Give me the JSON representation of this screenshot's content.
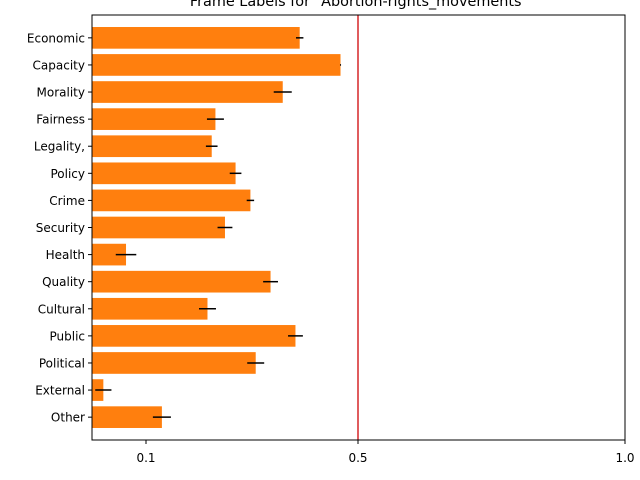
{
  "chart_data": {
    "type": "bar",
    "orientation": "horizontal",
    "title": "Frame Labels for \"Abortion-rights_movements\"",
    "xlabel": "",
    "ylabel": "",
    "categories": [
      "Economic",
      "Capacity",
      "Morality",
      "Fairness",
      "Legality,",
      "Policy",
      "Crime",
      "Security",
      "Health",
      "Quality",
      "Cultural",
      "Public",
      "Political",
      "External",
      "Other"
    ],
    "values": [
      0.39,
      0.467,
      0.358,
      0.231,
      0.224,
      0.269,
      0.297,
      0.249,
      0.063,
      0.335,
      0.216,
      0.382,
      0.307,
      0.021,
      0.13
    ],
    "errors": [
      0.007,
      0.001,
      0.017,
      0.016,
      0.011,
      0.011,
      0.007,
      0.014,
      0.019,
      0.014,
      0.016,
      0.014,
      0.016,
      0.015,
      0.017
    ],
    "xlim": [
      0,
      1.0
    ],
    "xticks": [
      0.1,
      0.5,
      1.0
    ],
    "xtick_labels": [
      "0.1",
      "0.5",
      "1.0"
    ],
    "reference_line": 0.5,
    "grid": false,
    "legend": "none",
    "colors": {
      "bar": "#ff7f0e",
      "error_bar": "#000000",
      "reference_line": "#d62728",
      "axes": "#000000"
    }
  }
}
